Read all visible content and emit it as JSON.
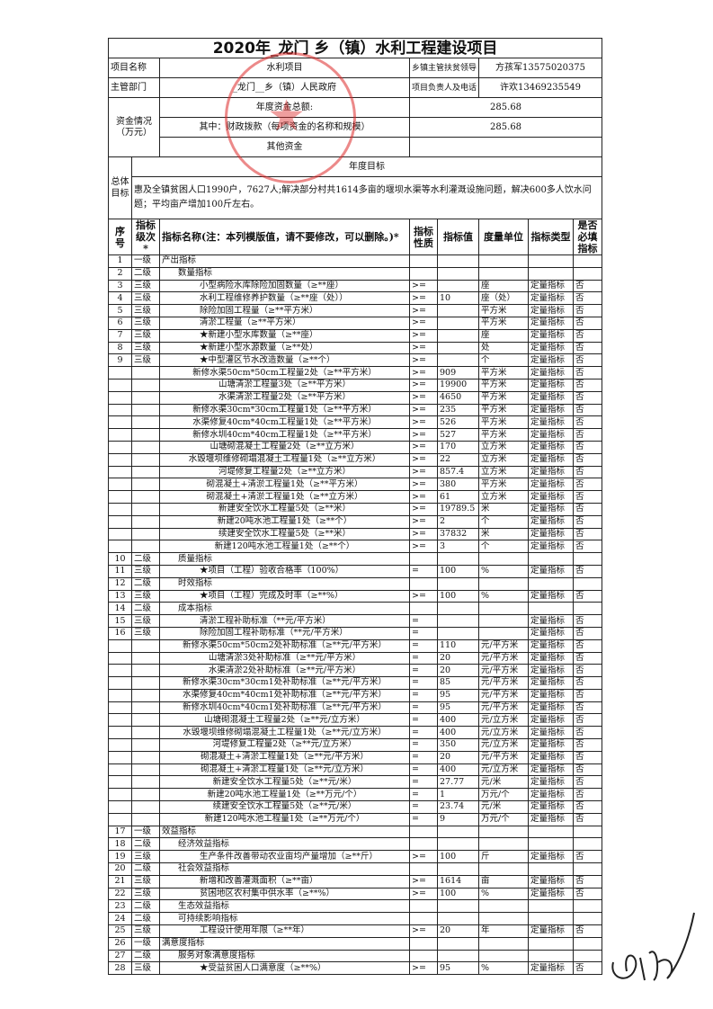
{
  "title": "2020年_龙门 乡（镇）水利工程建设项目",
  "project_name_label": "项目名称",
  "project_name": "水利项目",
  "leader_label": "乡镇主管扶贫领导",
  "leader": "方孩军13575020375",
  "dept_label": "主管部门",
  "dept": "_龙门__乡（镇）人民政府",
  "owner_label": "项目负责人及电话",
  "owner": "许欢13469235549",
  "funds_label": "资金情况（万元）",
  "funds_total_label": "年度资金总额:",
  "funds_total": "285.68",
  "funds_fiscal_label": "其中：财政拨款（每项资金的名称和规模）",
  "funds_fiscal": "285.68",
  "funds_other_label": "其他资金",
  "funds_other": "",
  "goal_label": "总体目标",
  "goal_header": "年度目标",
  "goal_text": "惠及全镇贫困人口1990户，7627人;解决部分村共1614多亩的堰坝水渠等水利灌溉设施问题，解决600多人饮水问题；平均亩产增加100斤左右。",
  "columns": [
    "序号",
    "指标级次*",
    "指标名称(注：本列模版值，请不要修改，可以删除。)*",
    "指标性质",
    "指标值",
    "度量单位",
    "指标类型",
    "是否必填指标"
  ],
  "stamp_color": "#dc2828",
  "rows": [
    {
      "seq": "1",
      "level": "一级",
      "name": "产出指标",
      "nature": "",
      "value": "",
      "unit": "",
      "type": "",
      "req": ""
    },
    {
      "seq": "2",
      "level": "二级",
      "name": "数量指标",
      "nature": "",
      "value": "",
      "unit": "",
      "type": "",
      "req": ""
    },
    {
      "seq": "3",
      "level": "三级",
      "name": "小型病险水库除险加固数量（≥**座）",
      "nature": ">=",
      "value": "",
      "unit": "座",
      "type": "定量指标",
      "req": "否"
    },
    {
      "seq": "4",
      "level": "三级",
      "name": "水利工程维修养护数量（≥**座（处））",
      "nature": ">=",
      "value": "10",
      "unit": "座（处）",
      "type": "定量指标",
      "req": "否"
    },
    {
      "seq": "5",
      "level": "三级",
      "name": "除险加固工程量（≥**平方米）",
      "nature": ">=",
      "value": "",
      "unit": "平方米",
      "type": "定量指标",
      "req": "否"
    },
    {
      "seq": "6",
      "level": "三级",
      "name": "清淤工程量（≥**平方米）",
      "nature": ">=",
      "value": "",
      "unit": "平方米",
      "type": "定量指标",
      "req": "否"
    },
    {
      "seq": "7",
      "level": "三级",
      "name": "★新建小型水库数量（≥**座）",
      "nature": ">=",
      "value": "",
      "unit": "座",
      "type": "定量指标",
      "req": "否"
    },
    {
      "seq": "8",
      "level": "三级",
      "name": "★新建小型水源数量（≥**处）",
      "nature": ">=",
      "value": "",
      "unit": "处",
      "type": "定量指标",
      "req": "否"
    },
    {
      "seq": "9",
      "level": "三级",
      "name": "★中型灌区节水改造数量（≥**个）",
      "nature": ">=",
      "value": "",
      "unit": "个",
      "type": "定量指标",
      "req": "否"
    },
    {
      "seq": "",
      "level": "",
      "name": "新修水渠50cm*50cm工程量2处（≥**平方米）",
      "nature": ">=",
      "value": "909",
      "unit": "平方米",
      "type": "定量指标",
      "req": "否"
    },
    {
      "seq": "",
      "level": "",
      "name": "山塘清淤工程量3处（≥**平方米）",
      "nature": ">=",
      "value": "19900",
      "unit": "平方米",
      "type": "定量指标",
      "req": "否"
    },
    {
      "seq": "",
      "level": "",
      "name": "水渠清淤工程量2处（≥**平方米）",
      "nature": ">=",
      "value": "4650",
      "unit": "平方米",
      "type": "定量指标",
      "req": "否"
    },
    {
      "seq": "",
      "level": "",
      "name": "新修水渠30cm*30cm工程量1处（≥**平方米）",
      "nature": ">=",
      "value": "235",
      "unit": "平方米",
      "type": "定量指标",
      "req": "否"
    },
    {
      "seq": "",
      "level": "",
      "name": "水渠修复40cm*40cm工程量1处（≥**平方米）",
      "nature": ">=",
      "value": "526",
      "unit": "平方米",
      "type": "定量指标",
      "req": "否"
    },
    {
      "seq": "",
      "level": "",
      "name": "新修水圳40cm*40cm工程量1处（≥**平方米）",
      "nature": ">=",
      "value": "527",
      "unit": "平方米",
      "type": "定量指标",
      "req": "否"
    },
    {
      "seq": "",
      "level": "",
      "name": "山塘砌混凝土工程量2处（≥**立方米）",
      "nature": ">=",
      "value": "170",
      "unit": "立方米",
      "type": "定量指标",
      "req": "否"
    },
    {
      "seq": "",
      "level": "",
      "name": "水毁堰坝维修砌塌混凝土工程量1处（≥**立方米）",
      "nature": ">=",
      "value": "22",
      "unit": "立方米",
      "type": "定量指标",
      "req": "否"
    },
    {
      "seq": "",
      "level": "",
      "name": "河堤修复工程量2处（≥**立方米）",
      "nature": ">=",
      "value": "857.4",
      "unit": "立方米",
      "type": "定量指标",
      "req": "否"
    },
    {
      "seq": "",
      "level": "",
      "name": "砌混凝土+清淤工程量1处（≥**平方米）",
      "nature": ">=",
      "value": "380",
      "unit": "平方米",
      "type": "定量指标",
      "req": "否"
    },
    {
      "seq": "",
      "level": "",
      "name": "砌混凝土+清淤工程量1处（≥**立方米）",
      "nature": ">=",
      "value": "61",
      "unit": "立方米",
      "type": "定量指标",
      "req": "否"
    },
    {
      "seq": "",
      "level": "",
      "name": "新建安全饮水工程量5处（≥**米）",
      "nature": ">=",
      "value": "19789.5",
      "unit": "米",
      "type": "定量指标",
      "req": "否"
    },
    {
      "seq": "",
      "level": "",
      "name": "新建20吨水池工程量1处（≥**个）",
      "nature": ">=",
      "value": "2",
      "unit": "个",
      "type": "定量指标",
      "req": "否"
    },
    {
      "seq": "",
      "level": "",
      "name": "续建安全饮水工程量5处（≥**米）",
      "nature": ">=",
      "value": "37832",
      "unit": "米",
      "type": "定量指标",
      "req": "否"
    },
    {
      "seq": "",
      "level": "",
      "name": "新建120吨水池工程量1处（≥**个）",
      "nature": ">=",
      "value": "3",
      "unit": "个",
      "type": "定量指标",
      "req": "否"
    },
    {
      "seq": "10",
      "level": "二级",
      "name": "质量指标",
      "nature": "",
      "value": "",
      "unit": "",
      "type": "",
      "req": ""
    },
    {
      "seq": "11",
      "level": "三级",
      "name": "★项目（工程）验收合格率（100%）",
      "nature": "=",
      "value": "100",
      "unit": "%",
      "type": "定量指标",
      "req": "否"
    },
    {
      "seq": "12",
      "level": "二级",
      "name": "时效指标",
      "nature": "",
      "value": "",
      "unit": "",
      "type": "",
      "req": ""
    },
    {
      "seq": "13",
      "level": "三级",
      "name": "★项目（工程）完成及时率（≥**%）",
      "nature": ">=",
      "value": "100",
      "unit": "%",
      "type": "定量指标",
      "req": "否"
    },
    {
      "seq": "14",
      "level": "二级",
      "name": "成本指标",
      "nature": "",
      "value": "",
      "unit": "",
      "type": "",
      "req": ""
    },
    {
      "seq": "15",
      "level": "三级",
      "name": "清淤工程补助标准（**元/平方米）",
      "nature": "=",
      "value": "",
      "unit": "",
      "type": "定量指标",
      "req": "否"
    },
    {
      "seq": "16",
      "level": "三级",
      "name": "除险加固工程补助标准（**元/平方米）",
      "nature": "=",
      "value": "",
      "unit": "",
      "type": "定量指标",
      "req": "否"
    },
    {
      "seq": "",
      "level": "",
      "name": "新修水渠50cm*50cm2处补助标准（≥**元/平方米）",
      "nature": "=",
      "value": "110",
      "unit": "元/平方米",
      "type": "定量指标",
      "req": "否"
    },
    {
      "seq": "",
      "level": "",
      "name": "山塘清淤3处补助标准（≥**元/平方米）",
      "nature": "=",
      "value": "20",
      "unit": "元/平方米",
      "type": "定量指标",
      "req": "否"
    },
    {
      "seq": "",
      "level": "",
      "name": "水渠清淤2处补助标准（≥**元/平方米）",
      "nature": "=",
      "value": "20",
      "unit": "元/平方米",
      "type": "定量指标",
      "req": "否"
    },
    {
      "seq": "",
      "level": "",
      "name": "新修水渠30cm*30cm1处补助标准（≥**元/平方米）",
      "nature": "=",
      "value": "85",
      "unit": "元/平方米",
      "type": "定量指标",
      "req": "否"
    },
    {
      "seq": "",
      "level": "",
      "name": "水渠修复40cm*40cm1处补助标准（≥**元/平方米）",
      "nature": "=",
      "value": "95",
      "unit": "元/平方米",
      "type": "定量指标",
      "req": "否"
    },
    {
      "seq": "",
      "level": "",
      "name": "新修水圳40cm*40cm1处补助标准（≥**元/平方米）",
      "nature": "=",
      "value": "95",
      "unit": "元/平方米",
      "type": "定量指标",
      "req": "否"
    },
    {
      "seq": "",
      "level": "",
      "name": "山塘砌混凝土工程量2处（≥**元/立方米）",
      "nature": "=",
      "value": "400",
      "unit": "元/立方米",
      "type": "定量指标",
      "req": "否"
    },
    {
      "seq": "",
      "level": "",
      "name": "水毁堰坝维修砌塌混凝土工程量1处（≥**元/立方米）",
      "nature": "=",
      "value": "400",
      "unit": "元/立方米",
      "type": "定量指标",
      "req": "否"
    },
    {
      "seq": "",
      "level": "",
      "name": "河堤修复工程量2处（≥**元/立方米）",
      "nature": "=",
      "value": "350",
      "unit": "元/立方米",
      "type": "定量指标",
      "req": "否"
    },
    {
      "seq": "",
      "level": "",
      "name": "砌混凝土+清淤工程量1处（≥**元/平方米）",
      "nature": "=",
      "value": "20",
      "unit": "元/平方米",
      "type": "定量指标",
      "req": "否"
    },
    {
      "seq": "",
      "level": "",
      "name": "砌混凝土+清淤工程量1处（≥**元/立方米）",
      "nature": "=",
      "value": "400",
      "unit": "元/立方米",
      "type": "定量指标",
      "req": "否"
    },
    {
      "seq": "",
      "level": "",
      "name": "新建安全饮水工程量5处（≥**元/米）",
      "nature": "=",
      "value": "27.77",
      "unit": "元/米",
      "type": "定量指标",
      "req": "否"
    },
    {
      "seq": "",
      "level": "",
      "name": "新建20吨水池工程量1处（≥**万元/个）",
      "nature": "=",
      "value": "1",
      "unit": "万元/个",
      "type": "定量指标",
      "req": "否"
    },
    {
      "seq": "",
      "level": "",
      "name": "续建安全饮水工程量5处（≥**元/米）",
      "nature": "=",
      "value": "23.74",
      "unit": "元/米",
      "type": "定量指标",
      "req": "否"
    },
    {
      "seq": "",
      "level": "",
      "name": "新建120吨水池工程量1处（≥**万元/个）",
      "nature": "=",
      "value": "9",
      "unit": "万元/个",
      "type": "定量指标",
      "req": "否"
    },
    {
      "seq": "17",
      "level": "一级",
      "name": "效益指标",
      "nature": "",
      "value": "",
      "unit": "",
      "type": "",
      "req": ""
    },
    {
      "seq": "18",
      "level": "二级",
      "name": "经济效益指标",
      "nature": "",
      "value": "",
      "unit": "",
      "type": "",
      "req": ""
    },
    {
      "seq": "19",
      "level": "三级",
      "name": "生产条件改善带动农业亩均产量增加（≥**斤）",
      "nature": ">=",
      "value": "100",
      "unit": "斤",
      "type": "定量指标",
      "req": "否"
    },
    {
      "seq": "20",
      "level": "二级",
      "name": "社会效益指标",
      "nature": "",
      "value": "",
      "unit": "",
      "type": "",
      "req": ""
    },
    {
      "seq": "21",
      "level": "三级",
      "name": "新增和改善灌溉面积（≥**亩）",
      "nature": ">=",
      "value": "1614",
      "unit": "亩",
      "type": "定量指标",
      "req": "否"
    },
    {
      "seq": "22",
      "level": "三级",
      "name": "贫困地区农村集中供水率（≥**%）",
      "nature": ">=",
      "value": "100",
      "unit": "%",
      "type": "定量指标",
      "req": "否"
    },
    {
      "seq": "23",
      "level": "二级",
      "name": "生态效益指标",
      "nature": "",
      "value": "",
      "unit": "",
      "type": "",
      "req": ""
    },
    {
      "seq": "24",
      "level": "二级",
      "name": "可持续影响指标",
      "nature": "",
      "value": "",
      "unit": "",
      "type": "",
      "req": ""
    },
    {
      "seq": "25",
      "level": "三级",
      "name": "工程设计使用年限（≥**年）",
      "nature": ">=",
      "value": "20",
      "unit": "年",
      "type": "定量指标",
      "req": "否"
    },
    {
      "seq": "26",
      "level": "一级",
      "name": "满意度指标",
      "nature": "",
      "value": "",
      "unit": "",
      "type": "",
      "req": ""
    },
    {
      "seq": "27",
      "level": "二级",
      "name": "服务对象满意度指标",
      "nature": "",
      "value": "",
      "unit": "",
      "type": "",
      "req": ""
    },
    {
      "seq": "28",
      "level": "三级",
      "name": "★受益贫困人口满意度（≥**%）",
      "nature": ">=",
      "value": "95",
      "unit": "%",
      "type": "定量指标",
      "req": "否"
    }
  ]
}
